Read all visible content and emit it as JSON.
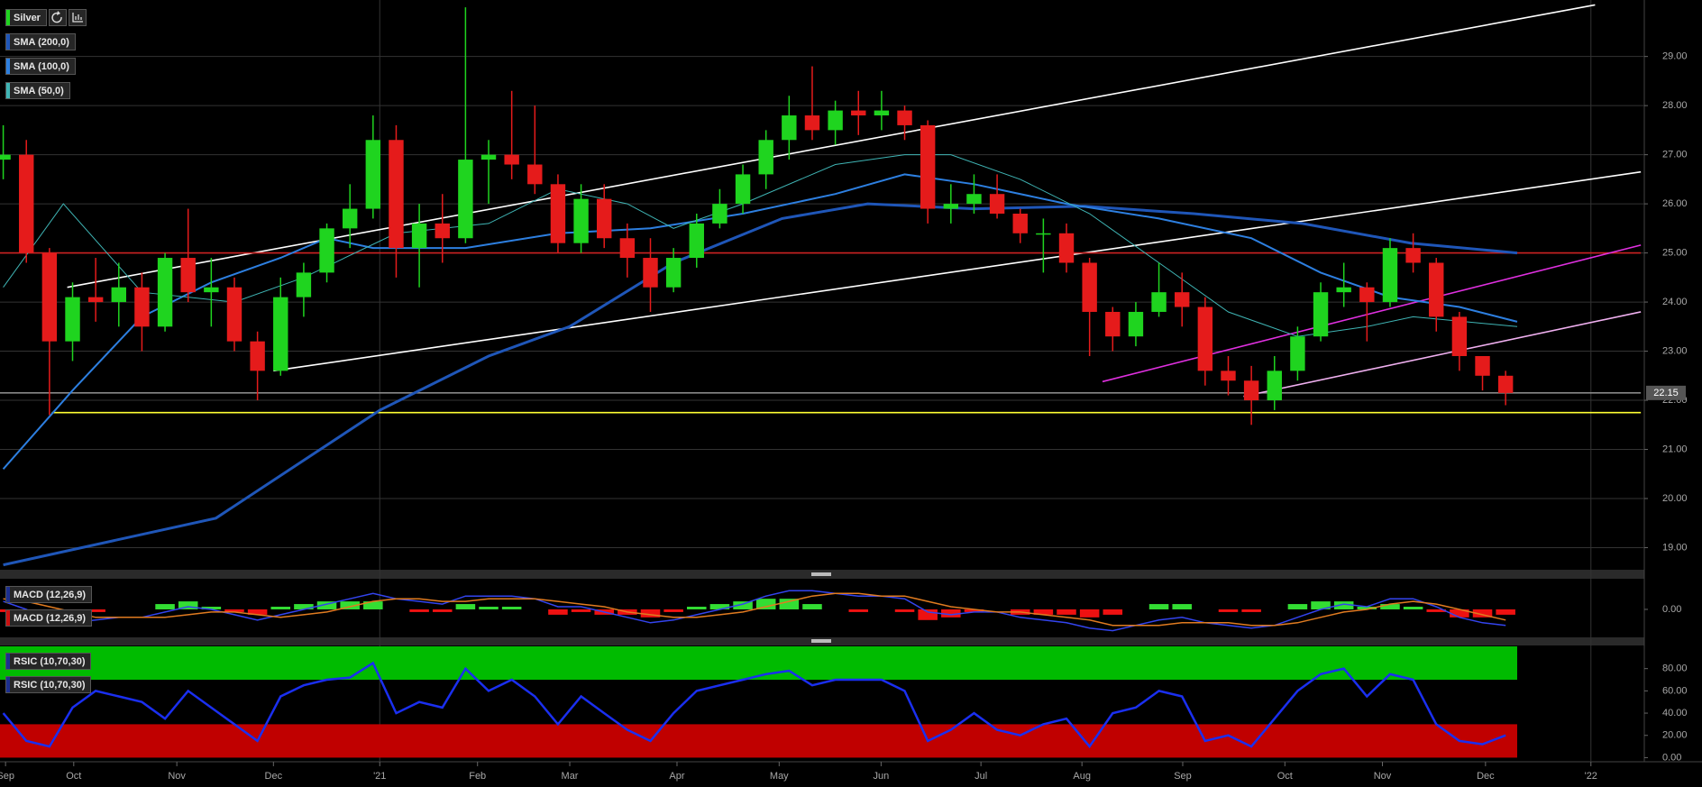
{
  "chart_data": [
    {
      "type": "candlestick",
      "series": [
        {
          "name": "Silver",
          "color": "#1fd41f",
          "up_color": "#1fd41f",
          "down_color": "#e51b1b",
          "x": [
            0,
            1,
            2,
            3,
            4,
            5,
            6,
            7,
            8,
            9,
            10,
            11,
            12,
            13,
            14,
            15,
            16,
            17,
            18,
            19,
            20,
            21,
            22,
            23,
            24,
            25,
            26,
            27,
            28,
            29,
            30,
            31,
            32,
            33,
            34,
            35,
            36,
            37,
            38,
            39,
            40,
            41,
            42,
            43,
            44,
            45,
            46,
            47,
            48,
            49,
            50,
            51,
            52,
            53,
            54,
            55,
            56,
            57,
            58,
            59,
            60,
            61,
            62,
            63,
            64,
            65
          ],
          "open": [
            26.9,
            27.0,
            25.0,
            23.2,
            24.1,
            24.0,
            24.3,
            23.5,
            24.9,
            24.2,
            24.3,
            23.2,
            22.6,
            24.1,
            24.6,
            25.5,
            25.9,
            27.3,
            25.1,
            25.6,
            25.3,
            26.9,
            27.0,
            26.8,
            26.4,
            25.2,
            26.1,
            25.3,
            24.9,
            24.3,
            24.9,
            25.6,
            26.0,
            26.6,
            27.3,
            27.8,
            27.5,
            27.9,
            27.8,
            27.9,
            27.6,
            25.9,
            26.0,
            26.2,
            25.8,
            25.4,
            25.4,
            24.8,
            23.8,
            23.3,
            23.8,
            24.2,
            23.9,
            22.6,
            22.4,
            22.0,
            22.6,
            23.3,
            24.2,
            24.3,
            24.0,
            25.1,
            24.8,
            23.7,
            22.9,
            22.5
          ],
          "high": [
            27.6,
            27.3,
            25.1,
            24.4,
            24.9,
            24.8,
            24.6,
            25.0,
            25.9,
            24.9,
            24.5,
            23.4,
            24.5,
            24.8,
            25.6,
            26.4,
            27.8,
            27.6,
            26.0,
            26.2,
            30.0,
            27.3,
            28.3,
            28.0,
            26.6,
            26.4,
            26.4,
            25.6,
            25.3,
            25.1,
            25.8,
            26.3,
            26.8,
            27.5,
            28.2,
            28.8,
            28.1,
            28.3,
            28.3,
            28.0,
            27.7,
            26.4,
            26.6,
            26.6,
            25.9,
            25.7,
            25.6,
            24.9,
            23.9,
            24.0,
            24.8,
            24.6,
            24.1,
            22.9,
            22.7,
            22.9,
            23.5,
            24.4,
            24.8,
            24.4,
            25.3,
            25.4,
            24.9,
            23.8,
            22.9,
            22.6
          ],
          "low": [
            26.5,
            24.8,
            21.7,
            22.8,
            23.6,
            23.5,
            23.0,
            23.4,
            24.0,
            23.5,
            23.0,
            22.0,
            22.5,
            23.7,
            24.4,
            25.1,
            25.7,
            24.5,
            24.3,
            24.8,
            25.2,
            26.0,
            26.5,
            26.2,
            25.0,
            25.0,
            25.1,
            24.5,
            23.8,
            24.2,
            24.7,
            25.5,
            25.8,
            26.3,
            26.9,
            27.3,
            27.2,
            27.4,
            27.5,
            27.3,
            25.6,
            25.6,
            25.8,
            25.7,
            25.2,
            24.6,
            24.6,
            22.9,
            23.0,
            23.1,
            23.7,
            23.5,
            22.3,
            22.1,
            21.5,
            21.8,
            22.4,
            23.2,
            23.9,
            23.2,
            23.9,
            24.6,
            23.4,
            22.6,
            22.2,
            21.9
          ],
          "close": [
            27.0,
            25.0,
            23.2,
            24.1,
            24.0,
            24.3,
            23.5,
            24.9,
            24.2,
            24.3,
            23.2,
            22.6,
            24.1,
            24.6,
            25.5,
            25.9,
            27.3,
            25.1,
            25.6,
            25.3,
            26.9,
            27.0,
            26.8,
            26.4,
            25.2,
            26.1,
            25.3,
            24.9,
            24.3,
            24.9,
            25.6,
            26.0,
            26.6,
            27.3,
            27.8,
            27.5,
            27.9,
            27.8,
            27.9,
            27.6,
            25.9,
            26.0,
            26.2,
            25.8,
            25.4,
            25.4,
            24.8,
            23.8,
            23.3,
            23.8,
            24.2,
            23.9,
            22.6,
            22.4,
            22.0,
            22.6,
            23.3,
            24.2,
            24.3,
            24.0,
            25.1,
            24.8,
            23.7,
            22.9,
            22.5,
            22.15
          ]
        }
      ],
      "lines": [
        {
          "name": "SMA (200,0)",
          "color": "#1f56b8",
          "width": 3,
          "x": [
            0,
            9.2,
            16.3,
            21,
            24.5,
            29,
            33.7,
            37.4,
            42,
            46.8,
            51.5,
            56.2,
            60.9,
            65.5
          ],
          "values": [
            18.65,
            19.6,
            21.8,
            22.9,
            23.5,
            24.8,
            25.7,
            26.0,
            25.9,
            25.95,
            25.8,
            25.6,
            25.2,
            25.0
          ]
        },
        {
          "name": "SMA (100,0)",
          "color": "#2d7fe0",
          "width": 2,
          "x": [
            0,
            3,
            6,
            9,
            12,
            14,
            16,
            20,
            24,
            28,
            32,
            36,
            39,
            42,
            46,
            50,
            54,
            57,
            60,
            63,
            65.5
          ],
          "values": [
            20.6,
            22.2,
            23.7,
            24.4,
            24.9,
            25.3,
            25.1,
            25.1,
            25.4,
            25.5,
            25.8,
            26.2,
            26.6,
            26.4,
            26.0,
            25.7,
            25.3,
            24.6,
            24.1,
            23.9,
            23.6
          ]
        },
        {
          "name": "SMA (50,0)",
          "color": "#3fb4b4",
          "width": 1,
          "x": [
            0,
            2.6,
            6,
            10,
            13,
            17,
            21,
            24,
            27,
            29,
            32,
            36,
            39,
            41,
            44,
            47,
            50,
            53,
            56,
            59,
            61,
            65.5
          ],
          "values": [
            24.3,
            26.0,
            24.2,
            24.0,
            24.5,
            25.4,
            25.6,
            26.3,
            26.0,
            25.5,
            26.0,
            26.8,
            27.0,
            27.0,
            26.5,
            25.8,
            24.8,
            23.8,
            23.3,
            23.5,
            23.7,
            23.5
          ]
        }
      ],
      "trendlines": [
        {
          "color": "#ffffff",
          "x": [
            2.77,
            68.87
          ],
          "values": [
            24.3,
            30.05
          ]
        },
        {
          "color": "#ffffff",
          "x": [
            11.69,
            70.85
          ],
          "values": [
            22.6,
            26.65
          ]
        },
        {
          "color": "#cc2222",
          "x": [
            -0.14,
            70.85
          ],
          "values": [
            25.0,
            25.0
          ]
        },
        {
          "color": "#ffff33",
          "x": [
            2.1,
            70.85
          ],
          "values": [
            21.75,
            21.75
          ]
        },
        {
          "color": "#888888",
          "x": [
            -0.14,
            70.85
          ],
          "values": [
            22.15,
            22.15
          ]
        },
        {
          "color": "#e030e0",
          "x": [
            47.56,
            70.85
          ],
          "values": [
            22.38,
            25.16
          ]
        },
        {
          "color": "#f0b0f0",
          "x": [
            53.66,
            70.85
          ],
          "values": [
            22.08,
            23.8
          ]
        }
      ],
      "last_price": 22.15,
      "xlim": [
        -0.14,
        71
      ],
      "ylim": [
        18.55,
        30.15
      ],
      "xticks": [
        {
          "value": 0.1,
          "label": "Sep"
        },
        {
          "value": 3.05,
          "label": "Oct"
        },
        {
          "value": 7.51,
          "label": "Nov"
        },
        {
          "value": 11.69,
          "label": "Dec"
        },
        {
          "value": 16.29,
          "label": "'21"
        },
        {
          "value": 20.52,
          "label": "Feb"
        },
        {
          "value": 24.51,
          "label": "Mar"
        },
        {
          "value": 29.15,
          "label": "Apr"
        },
        {
          "value": 33.57,
          "label": "May"
        },
        {
          "value": 37.98,
          "label": "Jun"
        },
        {
          "value": 42.3,
          "label": "Jul"
        },
        {
          "value": 46.67,
          "label": "Aug"
        },
        {
          "value": 51.03,
          "label": "Sep"
        },
        {
          "value": 55.45,
          "label": "Oct"
        },
        {
          "value": 59.67,
          "label": "Nov"
        },
        {
          "value": 64.13,
          "label": "Dec"
        },
        {
          "value": 68.69,
          "label": "'22"
        }
      ],
      "yticks": [
        {
          "value": 19,
          "label": "19.00"
        },
        {
          "value": 20,
          "label": "20.00"
        },
        {
          "value": 21,
          "label": "21.00"
        },
        {
          "value": 22,
          "label": "22.00"
        },
        {
          "value": 23,
          "label": "23.00"
        },
        {
          "value": 24,
          "label": "24.00"
        },
        {
          "value": 25,
          "label": "25.00"
        },
        {
          "value": 26,
          "label": "26.00"
        },
        {
          "value": 27,
          "label": "27.00"
        },
        {
          "value": 28,
          "label": "28.00"
        },
        {
          "value": 29,
          "label": "29.00"
        }
      ],
      "grid": true
    },
    {
      "type": "macd",
      "series": [
        {
          "name": "MACD (12,26,9)",
          "color": "#3344ee",
          "values": [
            0.3,
            0.0,
            -0.4,
            -0.5,
            -0.4,
            -0.3,
            -0.3,
            -0.1,
            0.1,
            0.0,
            -0.2,
            -0.4,
            -0.2,
            0.0,
            0.2,
            0.4,
            0.6,
            0.4,
            0.3,
            0.2,
            0.5,
            0.5,
            0.5,
            0.4,
            0.1,
            0.1,
            -0.1,
            -0.3,
            -0.5,
            -0.4,
            -0.2,
            0.0,
            0.2,
            0.5,
            0.7,
            0.7,
            0.6,
            0.5,
            0.5,
            0.4,
            -0.1,
            -0.2,
            -0.1,
            -0.1,
            -0.3,
            -0.4,
            -0.5,
            -0.7,
            -0.8,
            -0.6,
            -0.4,
            -0.3,
            -0.5,
            -0.6,
            -0.7,
            -0.6,
            -0.3,
            0.0,
            0.2,
            0.1,
            0.4,
            0.4,
            0.1,
            -0.3,
            -0.5,
            -0.6
          ]
        },
        {
          "name": "MACD (12,26,9)",
          "color": "#e07b20",
          "values": [
            0.4,
            0.3,
            0.1,
            -0.1,
            -0.3,
            -0.3,
            -0.3,
            -0.3,
            -0.2,
            -0.1,
            -0.1,
            -0.2,
            -0.3,
            -0.2,
            -0.1,
            0.1,
            0.3,
            0.4,
            0.4,
            0.3,
            0.3,
            0.4,
            0.4,
            0.4,
            0.3,
            0.2,
            0.1,
            -0.1,
            -0.2,
            -0.3,
            -0.3,
            -0.2,
            -0.1,
            0.1,
            0.3,
            0.5,
            0.6,
            0.6,
            0.5,
            0.5,
            0.3,
            0.1,
            0.0,
            -0.1,
            -0.1,
            -0.2,
            -0.3,
            -0.4,
            -0.6,
            -0.6,
            -0.6,
            -0.5,
            -0.5,
            -0.5,
            -0.6,
            -0.6,
            -0.5,
            -0.3,
            -0.1,
            0.0,
            0.2,
            0.3,
            0.2,
            0.0,
            -0.2,
            -0.4
          ]
        }
      ],
      "histogram": {
        "up_color": "#33dd33",
        "down_color": "#ee1111",
        "values": [
          -0.1,
          -0.3,
          -0.5,
          -0.4,
          -0.1,
          0,
          0,
          0.2,
          0.3,
          0.1,
          -0.1,
          -0.2,
          0.1,
          0.2,
          0.3,
          0.3,
          0.3,
          0,
          -0.1,
          -0.1,
          0.2,
          0.1,
          0.1,
          0,
          -0.2,
          -0.1,
          -0.2,
          -0.2,
          -0.3,
          -0.1,
          0.1,
          0.2,
          0.3,
          0.4,
          0.4,
          0.2,
          0,
          -0.1,
          0,
          -0.1,
          -0.4,
          -0.3,
          -0.1,
          0,
          -0.2,
          -0.2,
          -0.2,
          -0.3,
          -0.2,
          0,
          0.2,
          0.2,
          0,
          -0.1,
          -0.1,
          0,
          0.2,
          0.3,
          0.3,
          0.1,
          0.2,
          0.1,
          -0.1,
          -0.3,
          -0.3,
          -0.2
        ]
      },
      "ylim": [
        -1.05,
        1.15
      ],
      "yticks": [
        {
          "value": 0,
          "label": "0.00"
        }
      ]
    },
    {
      "type": "rsi",
      "legend": [
        "RSIC (10,70,30)",
        "RSIC (10,70,30)"
      ],
      "series": [
        {
          "name": "RSIC (10,70,30)",
          "color": "#1a2ff0",
          "values": [
            40,
            15,
            10,
            45,
            60,
            55,
            50,
            35,
            60,
            45,
            30,
            15,
            55,
            65,
            70,
            72,
            85,
            40,
            50,
            45,
            80,
            60,
            70,
            55,
            30,
            55,
            40,
            25,
            15,
            40,
            60,
            65,
            70,
            75,
            78,
            65,
            70,
            70,
            70,
            60,
            15,
            25,
            40,
            25,
            20,
            30,
            35,
            10,
            40,
            45,
            60,
            55,
            15,
            20,
            10,
            35,
            60,
            75,
            80,
            55,
            75,
            70,
            30,
            15,
            12,
            20
          ]
        }
      ],
      "bands": [
        {
          "from": 70,
          "to": 100,
          "color": "#00bb00"
        },
        {
          "from": 0,
          "to": 30,
          "color": "#c00000"
        }
      ],
      "ylim": [
        -3.7,
        100.8
      ],
      "yticks": [
        {
          "value": 0,
          "label": "0.00"
        },
        {
          "value": 20,
          "label": "20.00"
        },
        {
          "value": 40,
          "label": "40.00"
        },
        {
          "value": 60,
          "label": "60.00"
        },
        {
          "value": 80,
          "label": "80.00"
        }
      ]
    }
  ]
}
